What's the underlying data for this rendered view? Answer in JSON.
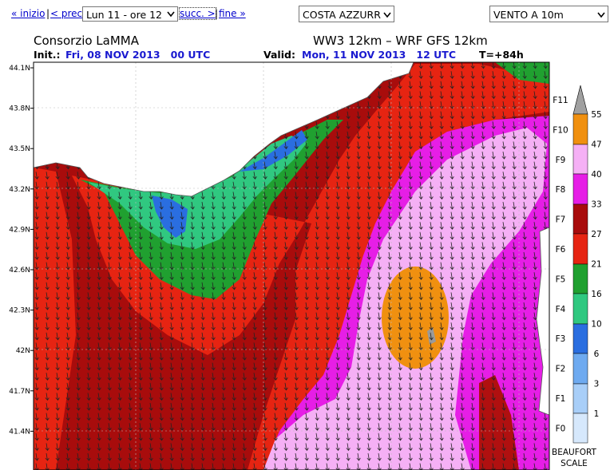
{
  "nav": {
    "first": "« inizio",
    "sep1": "|",
    "prev": "< prec.",
    "time_select": "Lun 11 - ore 12",
    "next": "succ. >",
    "sep2": "|",
    "last": "fine »",
    "area_select": "COSTA AZZURR",
    "variable_select": "VENTO A 10m"
  },
  "header": {
    "org": "Consorzio LaMMA",
    "models": "WW3 12km – WRF GFS 12km",
    "init_label": "Init.:",
    "init_value": "Fri, 08 NOV 2013   00 UTC",
    "valid_label": "Valid:",
    "valid_value": "Mon, 11 NOV 2013   12 UTC",
    "lead": "T=+84h"
  },
  "map": {
    "lat_labels": [
      "44.1N",
      "43.8N",
      "43.5N",
      "43.2N",
      "42.9N",
      "42.6N",
      "42.3N",
      "42N",
      "41.7N",
      "41.4N"
    ]
  },
  "legend": {
    "force_labels": [
      "F11",
      "F10",
      "F9",
      "F8",
      "F7",
      "F6",
      "F5",
      "F4",
      "F3",
      "F2",
      "F1",
      "F0"
    ],
    "thresholds": [
      55,
      47,
      40,
      33,
      27,
      21,
      16,
      10,
      6,
      3,
      1
    ],
    "title": "BEAUFORT",
    "subtitle": "SCALE"
  }
}
